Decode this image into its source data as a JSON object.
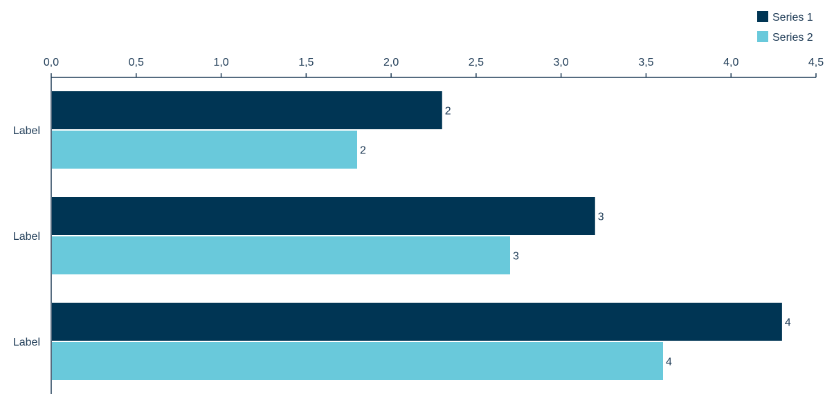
{
  "chart_data": {
    "type": "bar",
    "orientation": "horizontal",
    "categories": [
      "Label",
      "Label",
      "Label"
    ],
    "series": [
      {
        "name": "Series 1",
        "values": [
          2.3,
          3.2,
          4.3
        ],
        "data_labels": [
          "2",
          "3",
          "4"
        ],
        "color": "#003554"
      },
      {
        "name": "Series 2",
        "values": [
          1.8,
          2.7,
          3.6
        ],
        "data_labels": [
          "2",
          "3",
          "4"
        ],
        "color": "#69c9db"
      }
    ],
    "xlim": [
      0,
      4.5
    ],
    "x_ticks": [
      "0,0",
      "0,5",
      "1,0",
      "1,5",
      "2,0",
      "2,5",
      "3,0",
      "3,5",
      "4,0",
      "4,5"
    ],
    "x_axis_position": "top",
    "legend_position": "top-right",
    "grid": false,
    "axis_color": "#1d3a55"
  }
}
